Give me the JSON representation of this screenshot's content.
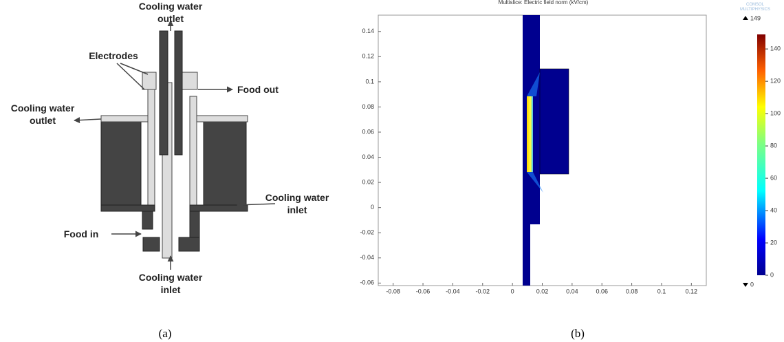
{
  "diagram": {
    "labels": [
      {
        "lines": [
          "Cooling water",
          "outlet"
        ]
      },
      {
        "lines": [
          "Electrodes"
        ]
      },
      {
        "lines": [
          "Food out"
        ]
      },
      {
        "lines": [
          "Cooling water",
          "outlet"
        ]
      },
      {
        "lines": [
          "Cooling water",
          "inlet"
        ]
      },
      {
        "lines": [
          "Food in"
        ]
      },
      {
        "lines": [
          "Cooling water",
          "inlet"
        ]
      }
    ]
  },
  "plot": {
    "title": "Multislice: Electric field norm (kV/cm)",
    "logo": [
      "COMSOL",
      "MULTIPHYSICS"
    ],
    "xlim": [
      -0.09,
      0.13
    ],
    "ylim": [
      -0.062,
      0.153
    ],
    "xticks": [
      -0.08,
      -0.06,
      -0.04,
      -0.02,
      0,
      0.02,
      0.04,
      0.06,
      0.08,
      0.1,
      0.12
    ],
    "yticks": [
      -0.06,
      -0.04,
      -0.02,
      0,
      0.02,
      0.04,
      0.06,
      0.08,
      0.1,
      0.12,
      0.14
    ],
    "colorbar": {
      "lim": [
        0,
        149
      ],
      "ticks": [
        0,
        20,
        40,
        60,
        80,
        100,
        120,
        140
      ],
      "max": 149,
      "min": 0
    }
  },
  "captions": [
    "(a)",
    "(b)"
  ]
}
